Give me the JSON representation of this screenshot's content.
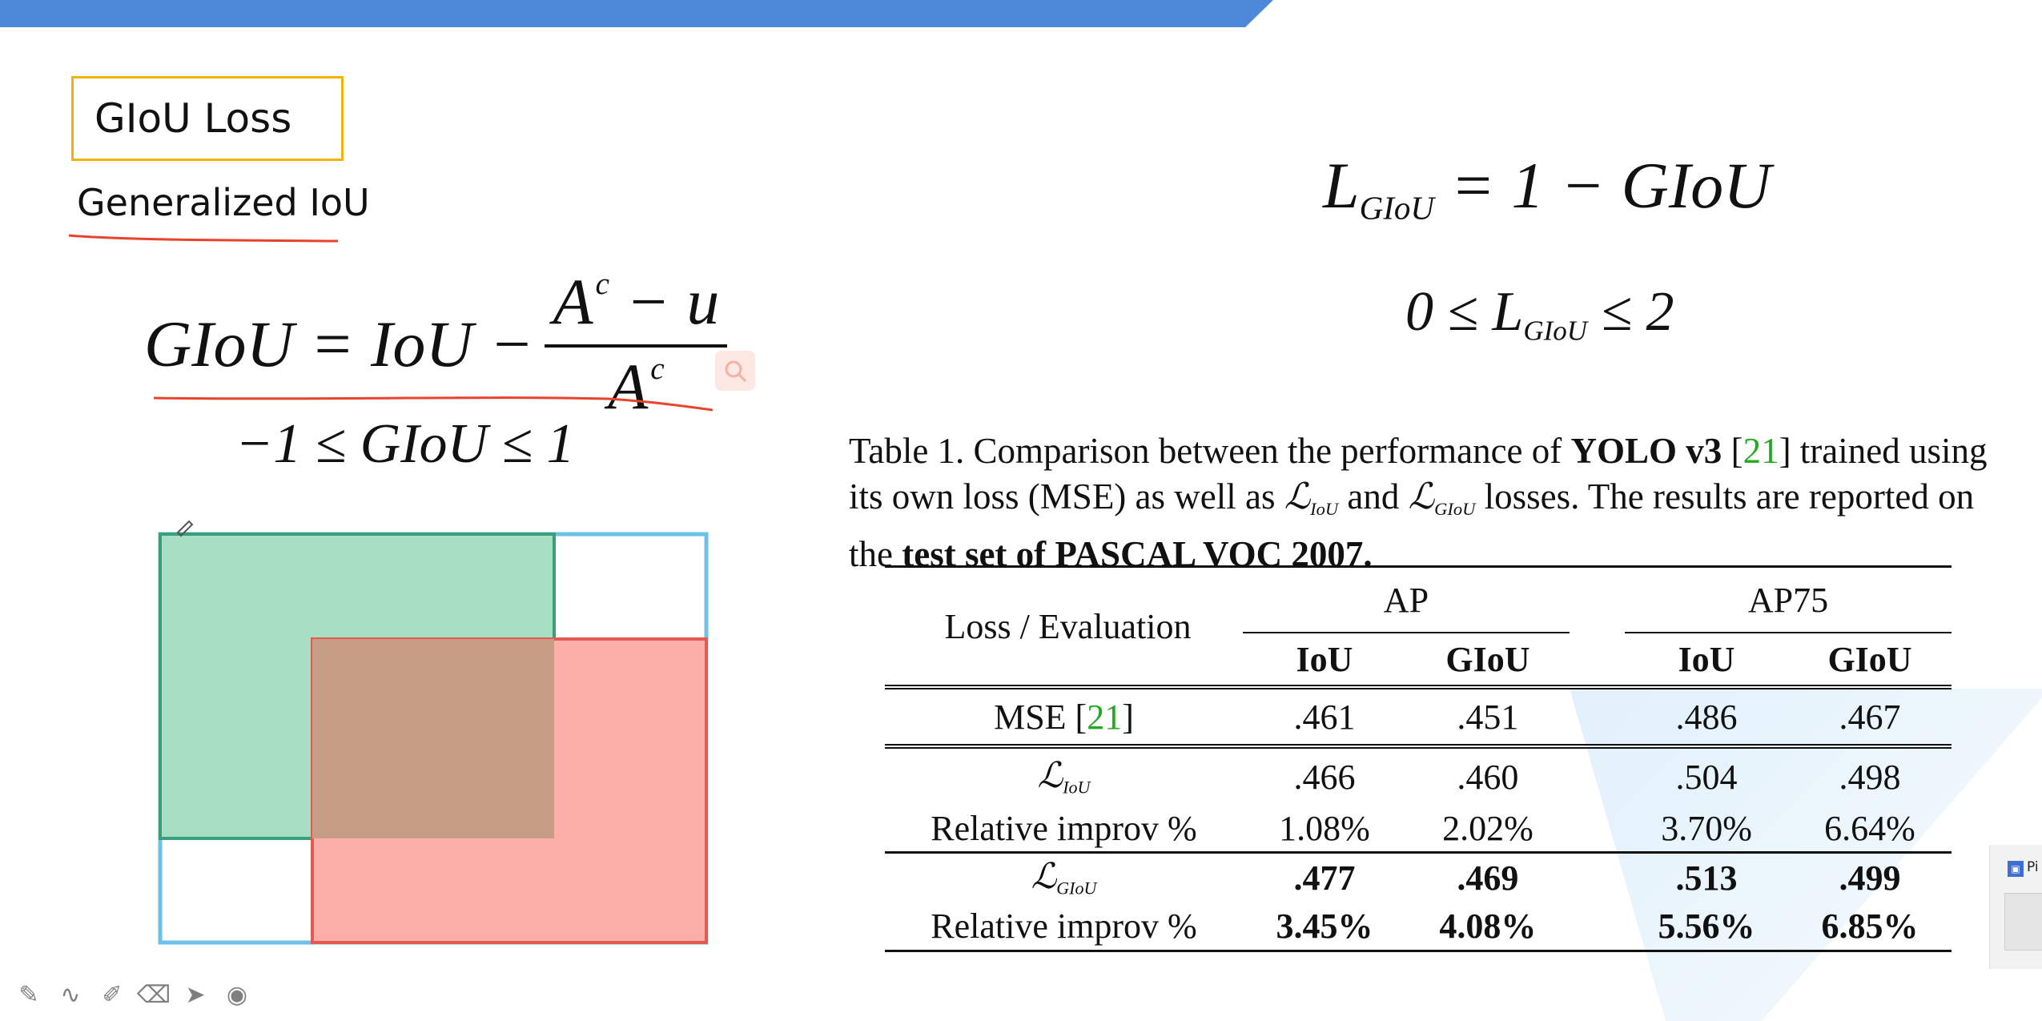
{
  "slide": {
    "title": "GIoU Loss",
    "subtitle": "Generalized IoU"
  },
  "formulas": {
    "giou_lhs": "GIoU = IoU −",
    "giou_num": "A",
    "giou_num_sup": "c",
    "giou_num_rest": " − u",
    "giou_den": "A",
    "giou_den_sup": "c",
    "giou_range": "−1 ≤ GIoU ≤ 1",
    "loss_L": "L",
    "loss_sub": "GIoU",
    "loss_rhs": " = 1 − GIoU",
    "range_left": "0 ≤ L",
    "range_sub": "GIoU",
    "range_right": " ≤ 2"
  },
  "caption": {
    "part1": "Table 1. Comparison between the performance of ",
    "bold1": "YOLO v3",
    "ref_open": " [",
    "ref": "21",
    "ref_close": "] trained using its own loss (MSE) as well as ",
    "liou_L": "ℒ",
    "liou_sub": "IoU",
    "and": " and ",
    "lgiou_L": "ℒ",
    "lgiou_sub": "GIoU",
    "part2": " losses. The results are reported on the ",
    "bold2": "test set of PASCAL VOC 2007."
  },
  "table": {
    "corner": "Loss / Evaluation",
    "group1": "AP",
    "group2": "AP75",
    "sub_iou": "IoU",
    "sub_giou": "GIoU",
    "rows": [
      {
        "label": "MSE [",
        "ref": "21",
        "label_end": "]",
        "v": [
          ".461",
          ".451",
          ".486",
          ".467"
        ]
      },
      {
        "label_L": "ℒ",
        "label_sub": "IoU",
        "v": [
          ".466",
          ".460",
          ".504",
          ".498"
        ]
      },
      {
        "label": "Relative improv %",
        "v": [
          "1.08%",
          "2.02%",
          "3.70%",
          "6.64%"
        ]
      },
      {
        "label_L": "ℒ",
        "label_sub": "GIoU",
        "v": [
          ".477",
          ".469",
          ".513",
          ".499"
        ]
      },
      {
        "label": "Relative improv %",
        "v": [
          "3.45%",
          "4.08%",
          "5.56%",
          "6.85%"
        ]
      }
    ]
  },
  "colors": {
    "topbar": "#4d88d9",
    "title_border": "#f0b400",
    "annotation_ink": "#e8432c",
    "box_green": "#a7dfc4",
    "box_red": "#fcaea8",
    "box_overlap": "#c89d86",
    "enclosing_box": "#6cc0ea",
    "reference_green": "#22aa22"
  },
  "toolbar_icons": [
    "pen-icon",
    "curve-icon",
    "marker-icon",
    "eraser-icon",
    "pointer-icon",
    "laser-icon"
  ],
  "thumbnail": {
    "label": "Pi"
  }
}
